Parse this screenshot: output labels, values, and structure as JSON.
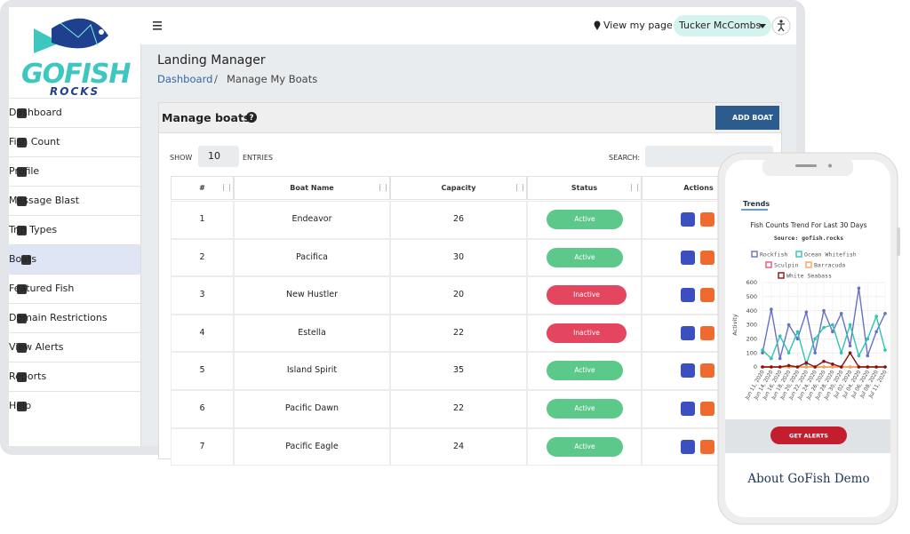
{
  "logo": {
    "word": "GOFISH",
    "tagline": "ROCKS"
  },
  "topbar": {
    "view_link": "View my page",
    "user": "Tucker McCombs"
  },
  "sidebar": {
    "items": [
      "Dashboard",
      "Fish Count",
      "Profile",
      "Message Blast",
      "Trip Types",
      "Boats",
      "Featured Fish",
      "Domain Restrictions",
      "View Alerts",
      "Reports",
      "Help"
    ]
  },
  "page": {
    "title": "Landing Manager",
    "breadcrumb": [
      "Dashboard",
      "/",
      "Manage My Boats"
    ]
  },
  "card": {
    "title": "Manage boats",
    "add_button": "ADD BOAT",
    "show_label": "SHOW",
    "page_size": "10",
    "entries_label": "ENTRIES",
    "search_label": "SEARCH:"
  },
  "table": {
    "columns": [
      "#",
      "Boat Name",
      "Capacity",
      "Status",
      "Actions"
    ],
    "status_colors": {
      "Active": "#5cc98b",
      "Inactive": "#e5465f"
    },
    "rows": [
      [
        1,
        "Endeavor",
        26,
        "Active"
      ],
      [
        2,
        "Pacifica",
        30,
        "Active"
      ],
      [
        3,
        "New Hustler",
        20,
        "Inactive"
      ],
      [
        4,
        "Estella",
        22,
        "Inactive"
      ],
      [
        5,
        "Island Spirit",
        35,
        "Active"
      ],
      [
        6,
        "Pacific Dawn",
        22,
        "Active"
      ],
      [
        7,
        "Pacific Eagle",
        24,
        "Active"
      ]
    ]
  },
  "phone": {
    "tab": "Trends",
    "button": "GET ALERTS",
    "about": "About GoFish Demo"
  },
  "chart_data": {
    "type": "line",
    "title": "Fish Counts Trend For Last 30 Days",
    "subtitle": "Source: gofish.rocks",
    "ylabel": "Activity",
    "categories": [
      "Jun 11, 2020",
      "Jun 14, 2020",
      "Jun 16, 2020",
      "Jun 18, 2020",
      "Jun 20, 2020",
      "Jun 22, 2020",
      "Jun 24, 2020",
      "Jun 26, 2020",
      "Jun 28, 2020",
      "Jun 30, 2020",
      "Jul 02, 2020",
      "Jul 04, 2020",
      "Jul 06, 2020",
      "Jul 08, 2020",
      "Jul 11, 2020"
    ],
    "series": [
      {
        "name": "Rockfish",
        "color": "#6870c4",
        "values": [
          100,
          410,
          60,
          300,
          200,
          390,
          100,
          400,
          250,
          380,
          150,
          560,
          80,
          250,
          380
        ]
      },
      {
        "name": "Ocean Whitefish",
        "color": "#2ec4b0",
        "values": [
          120,
          60,
          220,
          100,
          250,
          20,
          200,
          280,
          300,
          100,
          300,
          80,
          200,
          360,
          120
        ]
      },
      {
        "name": "Sculpin",
        "color": "#e3587a",
        "values": [
          0,
          0,
          0,
          0,
          0,
          0,
          0,
          0,
          0,
          0,
          0,
          0,
          0,
          0,
          0
        ]
      },
      {
        "name": "Barracuda",
        "color": "#f2a65a",
        "values": [
          0,
          0,
          0,
          0,
          0,
          0,
          0,
          0,
          0,
          0,
          0,
          0,
          0,
          0,
          0
        ]
      },
      {
        "name": "White Seabass",
        "color": "#8b1010",
        "values": [
          0,
          0,
          0,
          10,
          0,
          30,
          0,
          40,
          20,
          0,
          100,
          0,
          0,
          0,
          0
        ]
      }
    ],
    "ylim": [
      0,
      600
    ],
    "yticks": [
      0,
      100,
      200,
      300,
      400,
      500,
      600
    ],
    "grid": true
  }
}
